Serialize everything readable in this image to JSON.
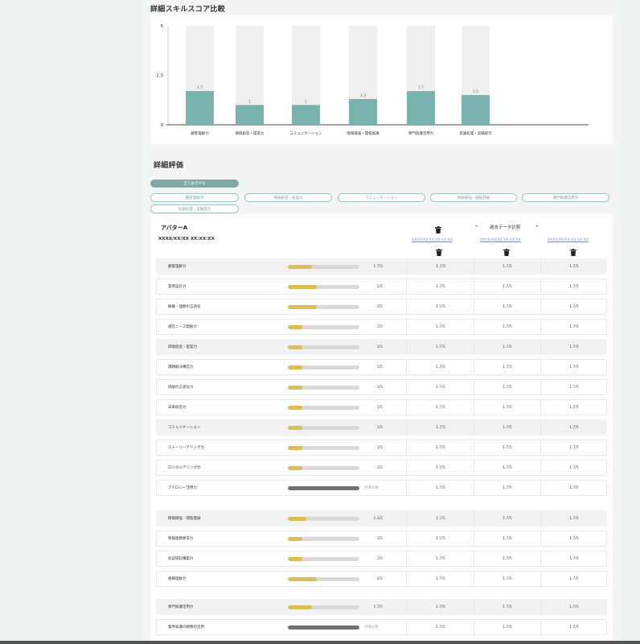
{
  "chart_section": {
    "title": "詳細スキルスコア比較"
  },
  "chart_data": {
    "type": "bar",
    "categories": [
      "顧客理解力",
      "価値創造・提案力",
      "コミュニケーション",
      "情報補強・開拓発展",
      "専門知識活用力",
      "反論処理・実績提示"
    ],
    "values": [
      1.7,
      1,
      1,
      1.3,
      1.7,
      1.5
    ],
    "value_labels": [
      "1.7",
      "1",
      "1",
      "1.3",
      "1.7",
      "1.5"
    ],
    "max": 5,
    "ylim": [
      0,
      5
    ],
    "yticks": [
      "0",
      "2.5",
      "5"
    ],
    "bar_color": "#79b2ae",
    "track_color": "#efefef"
  },
  "detail_section": {
    "title": "詳細評価"
  },
  "filters": {
    "all_label": "全て表示する",
    "chips": [
      "顧客理解力",
      "価値創造・提案力",
      "コミュニケーション",
      "情報補強・開拓発展",
      "専門知識活用力",
      "反論処理・実績提示"
    ]
  },
  "avatar": {
    "name": "アバターA",
    "date": "XXXX/XX/XX XX:XX:XX"
  },
  "past": {
    "label": "過去データ比較",
    "prev": "◂",
    "next": "▸",
    "dates": [
      "XXXX/XX/XX XX:XX:XX",
      "XXXX/XX/XX XX:XX:XX",
      "XXXX/XX/XX XX:XX:XX"
    ]
  },
  "rows": [
    {
      "label": "顧客理解力",
      "group": true,
      "value": 1.7,
      "score": "1.7/5",
      "past": [
        "1.7/5",
        "1.7/5",
        "1.7/5"
      ]
    },
    {
      "label": "質問設計力",
      "group": false,
      "value": 2,
      "score": "2/5",
      "past": [
        "1.7/5",
        "1.7/5",
        "1.7/5"
      ]
    },
    {
      "label": "解離・理解の言語化",
      "group": false,
      "value": 2,
      "score": "2/5",
      "past": [
        "1.7/5",
        "1.7/5",
        "1.7/5"
      ]
    },
    {
      "label": "潜在ニーズ発掘力",
      "group": false,
      "value": 1,
      "score": "1/5",
      "past": [
        "1.7/5",
        "1.7/5",
        "1.7/5"
      ]
    },
    {
      "label": "価値創造・提案力",
      "group": true,
      "value": 1,
      "score": "1/5",
      "past": [
        "1.7/5",
        "1.7/5",
        "1.7/5"
      ]
    },
    {
      "label": "課題解決構造力",
      "group": false,
      "value": 1,
      "score": "1/5",
      "past": [
        "1.7/5",
        "1.7/5",
        "1.7/5"
      ]
    },
    {
      "label": "価値の言語化力",
      "group": false,
      "value": 1,
      "score": "1/5",
      "past": [
        "1.7/5",
        "1.7/5",
        "1.7/5"
      ]
    },
    {
      "label": "未来創造力",
      "group": false,
      "value": 1,
      "score": "1/5",
      "past": [
        "1.7/5",
        "1.7/5",
        "1.7/5"
      ]
    },
    {
      "label": "コミュニケーション",
      "group": true,
      "value": 1,
      "score": "1/5",
      "past": [
        "1.7/5",
        "1.7/5",
        "1.7/5"
      ]
    },
    {
      "label": "ストーリーテリング力",
      "group": false,
      "value": 1,
      "score": "1/5",
      "past": [
        "1.7/5",
        "1.7/5",
        "1.7/5"
      ]
    },
    {
      "label": "ロジカルテリング力",
      "group": false,
      "value": 1,
      "score": "1/5",
      "past": [
        "1.7/5",
        "1.7/5",
        "1.7/5"
      ]
    },
    {
      "label": "アナロジー活用力",
      "group": false,
      "value": null,
      "score": "評価対象",
      "past": [
        "1.7/5",
        "1.7/5",
        "1.7/5"
      ]
    },
    {
      "label": "情報補強・開拓発展",
      "group": true,
      "value": 1.3,
      "score": "1.3/5",
      "past": [
        "1.7/5",
        "1.7/5",
        "1.7/5"
      ]
    },
    {
      "label": "情報連携要求力",
      "group": false,
      "value": 1,
      "score": "1/5",
      "past": [
        "1.7/5",
        "1.7/5",
        "1.7/5"
      ]
    },
    {
      "label": "仮説提起構築力",
      "group": false,
      "value": 1,
      "score": "1/5",
      "past": [
        "1.7/5",
        "1.7/5",
        "1.7/5"
      ]
    },
    {
      "label": "組織理解力",
      "group": false,
      "value": 2,
      "score": "2/5",
      "past": [
        "1.7/5",
        "1.7/5",
        "1.7/5"
      ]
    },
    {
      "label": "専門知識活用力",
      "group": true,
      "value": 1.7,
      "score": "1.7/5",
      "past": [
        "1.7/5",
        "1.7/5",
        "1.7/5"
      ]
    },
    {
      "label": "業界知識の戦略的活用",
      "group": false,
      "value": null,
      "score": "評価対象",
      "past": [
        "1.7/5",
        "1.7/5",
        "1.7/5"
      ]
    }
  ]
}
